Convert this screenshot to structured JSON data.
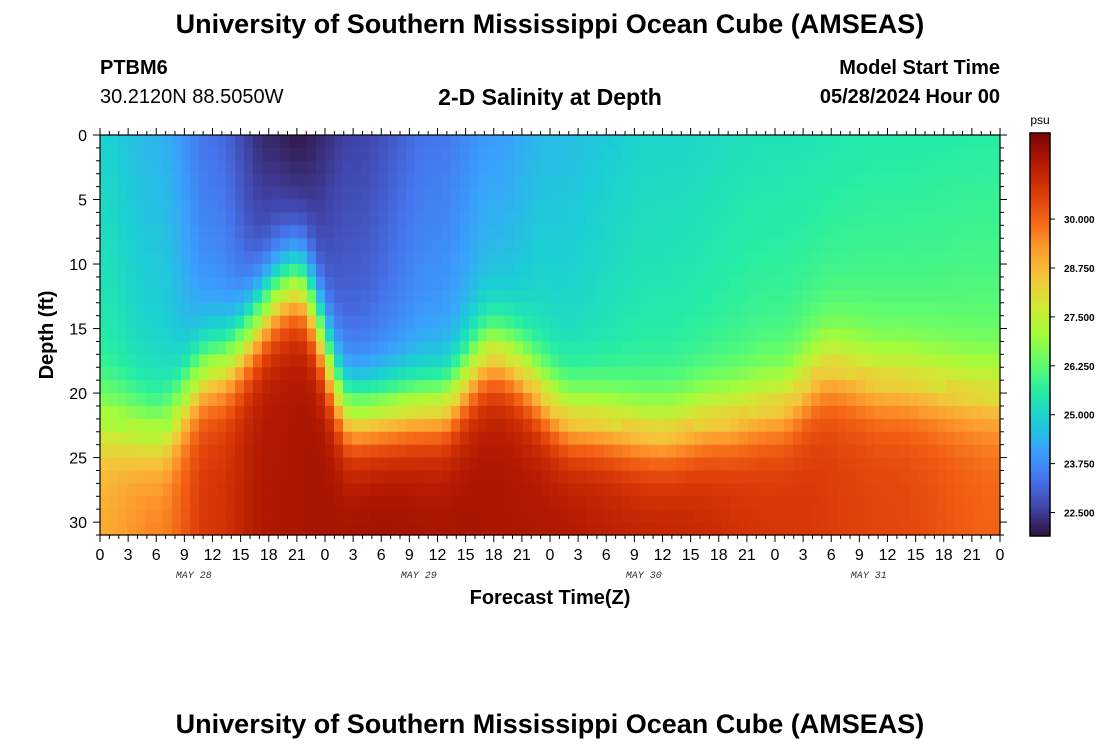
{
  "header": {
    "title": "University of Southern Mississippi Ocean Cube (AMSEAS)",
    "station": "PTBM6",
    "coords": "30.2120N  88.5050W",
    "subtitle": "2-D Salinity at Depth",
    "model_start_label": "Model Start Time",
    "model_start_value": "05/28/2024 Hour 00"
  },
  "footer": {
    "title": "University of Southern Mississippi Ocean Cube (AMSEAS)"
  },
  "colors": {
    "background": "#ffffff",
    "axis": "#000000",
    "palette": [
      "#30123b",
      "#4145ab",
      "#4675ed",
      "#39a2fc",
      "#1bcfd4",
      "#24eca6",
      "#61fc6c",
      "#a4fc3b",
      "#d1e834",
      "#f3c63a",
      "#fe9b2d",
      "#f36315",
      "#d93806",
      "#b11901",
      "#7a0402"
    ]
  },
  "chart_data": {
    "type": "heatmap",
    "title": "2-D Salinity at Depth",
    "xlabel": "Forecast Time(Z)",
    "ylabel": "Depth (ft)",
    "x_tick_labels": [
      "0",
      "3",
      "6",
      "9",
      "12",
      "15",
      "18",
      "21",
      "0",
      "3",
      "6",
      "9",
      "12",
      "15",
      "18",
      "21",
      "0",
      "3",
      "6",
      "9",
      "12",
      "15",
      "18",
      "21",
      "0",
      "3",
      "6",
      "9",
      "12",
      "15",
      "18",
      "21",
      "0"
    ],
    "date_labels": [
      "MAY 28",
      "MAY 29",
      "MAY 30",
      "MAY 31"
    ],
    "y_ticks": [
      0,
      5,
      10,
      15,
      20,
      25,
      30
    ],
    "ylim": [
      0,
      31
    ],
    "xlim_hours": [
      0,
      96
    ],
    "colorbar": {
      "unit": "psu",
      "range": [
        21.9,
        32.2
      ],
      "tick_values": [
        22.5,
        23.75,
        25.0,
        26.25,
        27.5,
        28.75,
        30.0
      ],
      "tick_labels": [
        "22.500",
        "23.750",
        "25.000",
        "26.250",
        "27.500",
        "28.750",
        "30.000"
      ]
    },
    "field_description": "Salinity (psu) vs forecast hour (x) and depth in ft (y); low-salinity surface layer (~22-25 psu) over high-salinity bottom layer (~30-32 psu) with halocline oscillating between ~12 ft and ~23 ft",
    "halocline_depth_ft": {
      "hours": [
        0,
        6,
        12,
        21,
        27,
        36,
        42,
        51,
        60,
        66,
        72,
        78,
        84,
        96
      ],
      "depths": [
        22,
        23,
        18,
        11.5,
        21.5,
        21,
        17,
        22,
        23,
        22,
        21,
        18,
        19,
        20
      ]
    },
    "surface_salinity_psu": {
      "hours": [
        0,
        6,
        12,
        18,
        21,
        27,
        36,
        42,
        48,
        60,
        72,
        84,
        96
      ],
      "values": [
        24.9,
        24.4,
        23.3,
        22.2,
        22.0,
        22.6,
        23.4,
        24.0,
        24.5,
        25.0,
        25.3,
        25.5,
        25.6
      ]
    },
    "bottom_salinity_psu": {
      "hours": [
        0,
        6,
        12,
        18,
        24,
        30,
        36,
        48,
        60,
        72,
        84,
        96
      ],
      "values": [
        29.0,
        29.6,
        30.8,
        31.5,
        31.6,
        31.7,
        31.6,
        31.5,
        31.2,
        30.8,
        30.5,
        30.0
      ]
    }
  }
}
